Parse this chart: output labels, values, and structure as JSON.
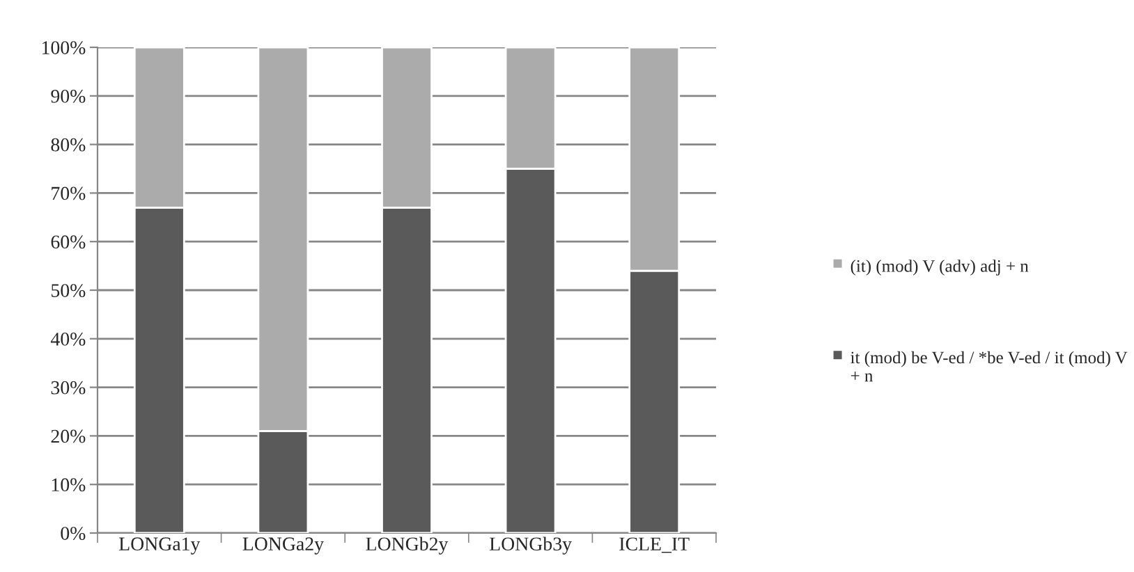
{
  "chart_data": {
    "type": "bar",
    "stacked": true,
    "categories": [
      "LONGa1y",
      "LONGa2y",
      "LONGb2y",
      "LONGb3y",
      "ICLE_IT"
    ],
    "series": [
      {
        "name": "it (mod) be V-ed / *be V-ed / it (mod) V + n",
        "color": "#5a5a5a",
        "values": [
          67,
          21,
          67,
          75,
          54
        ]
      },
      {
        "name": "(it) (mod) V (adv) adj + n",
        "color": "#ababab",
        "values": [
          33,
          79,
          33,
          25,
          46
        ]
      }
    ],
    "ylim": [
      0,
      100
    ],
    "yticks": [
      {
        "value": 0,
        "label": "0%"
      },
      {
        "value": 10,
        "label": "10%"
      },
      {
        "value": 20,
        "label": "20%"
      },
      {
        "value": 30,
        "label": "30%"
      },
      {
        "value": 40,
        "label": "40%"
      },
      {
        "value": 50,
        "label": "50%"
      },
      {
        "value": 60,
        "label": "60%"
      },
      {
        "value": 70,
        "label": "70%"
      },
      {
        "value": 80,
        "label": "80%"
      },
      {
        "value": 90,
        "label": "90%"
      },
      {
        "value": 100,
        "label": "100%"
      }
    ],
    "grid": "y",
    "legend": "right"
  }
}
